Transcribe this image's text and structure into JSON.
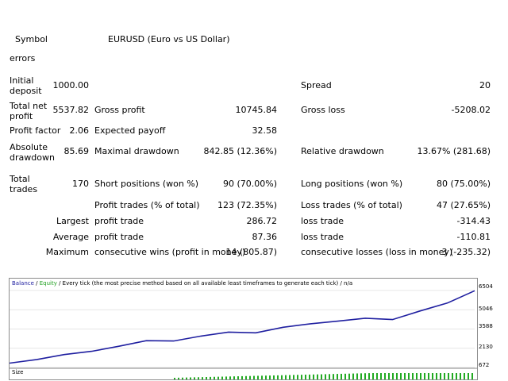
{
  "report": {
    "symbol_label": "Symbol",
    "symbol_value": "EURUSD (Euro vs US Dollar)",
    "errors_label": "errors",
    "initial_deposit_label": "Initial deposit",
    "initial_deposit_value": "1000.00",
    "spread_label": "Spread",
    "spread_value": "20",
    "total_net_profit_label": "Total net profit",
    "total_net_profit_value": "5537.82",
    "gross_profit_label": "Gross profit",
    "gross_profit_value": "10745.84",
    "gross_loss_label": "Gross loss",
    "gross_loss_value": "-5208.02",
    "profit_factor_label": "Profit factor",
    "profit_factor_value": "2.06",
    "expected_payoff_label": "Expected payoff",
    "expected_payoff_value": "32.58",
    "absolute_drawdown_label": "Absolute drawdown",
    "absolute_drawdown_value": "85.69",
    "maximal_drawdown_label": "Maximal drawdown",
    "maximal_drawdown_value": "842.85 (12.36%)",
    "relative_drawdown_label": "Relative drawdown",
    "relative_drawdown_value": "13.67% (281.68)",
    "total_trades_label": "Total trades",
    "total_trades_value": "170",
    "short_positions_label": "Short positions (won %)",
    "short_positions_value": "90 (70.00%)",
    "long_positions_label": "Long positions (won %)",
    "long_positions_value": "80 (75.00%)",
    "profit_trades_label": "Profit trades (% of total)",
    "profit_trades_value": "123 (72.35%)",
    "loss_trades_label": "Loss trades (% of total)",
    "loss_trades_value": "47 (27.65%)",
    "largest_label": "Largest",
    "largest_profit_label": "profit trade",
    "largest_profit_value": "286.72",
    "largest_loss_label": "loss trade",
    "largest_loss_value": "-314.43",
    "average_label": "Average",
    "average_profit_label": "profit trade",
    "average_profit_value": "87.36",
    "average_loss_label": "loss trade",
    "average_loss_value": "-110.81",
    "maximum_label": "Maximum",
    "max_consec_wins_label": "consecutive wins (profit in money)",
    "max_consec_wins_value": "14 (805.87)",
    "max_consec_losses_label": "consecutive losses (loss in money)",
    "max_consec_losses_value": "3 (-235.32)"
  },
  "chart": {
    "legend_balance": "Balance",
    "legend_sep1": " / ",
    "legend_equity": "Equity",
    "legend_rest": " / Every tick (the most precise method based on all available least timeframes to generate each tick)  /  n/a",
    "size_label": "Size",
    "y_ticks": [
      "6504",
      "5046",
      "3588",
      "2130",
      "672"
    ],
    "colors": {
      "balance": "#1f1fa0",
      "equity": "#1f9f1f",
      "size_bars": "#22aa22",
      "frame": "#8a8a8a"
    }
  },
  "chart_data": {
    "type": "line",
    "series": [
      {
        "name": "Balance",
        "x": [
          0,
          10,
          20,
          30,
          40,
          50,
          60,
          70,
          80,
          90,
          100,
          110,
          120,
          130,
          140,
          150,
          160,
          170
        ],
        "y": [
          1000,
          1280,
          1650,
          1900,
          2280,
          2700,
          2680,
          3050,
          3350,
          3300,
          3720,
          3980,
          4180,
          4400,
          4300,
          4950,
          5550,
          6480
        ]
      }
    ],
    "y_ticks": [
      672,
      2130,
      3588,
      5046,
      6504
    ],
    "ylim": [
      672,
      6800
    ],
    "xlim": [
      0,
      170
    ]
  }
}
